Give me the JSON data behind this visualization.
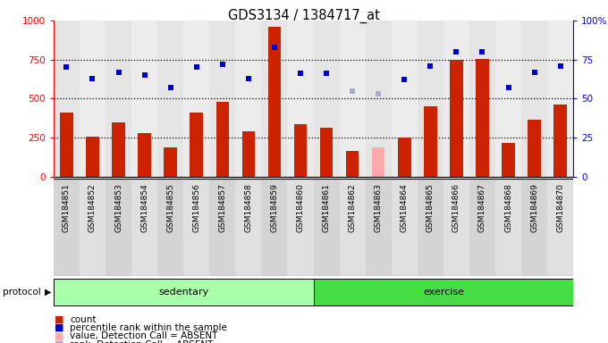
{
  "title": "GDS3134 / 1384717_at",
  "samples": [
    "GSM184851",
    "GSM184852",
    "GSM184853",
    "GSM184854",
    "GSM184855",
    "GSM184856",
    "GSM184857",
    "GSM184858",
    "GSM184859",
    "GSM184860",
    "GSM184861",
    "GSM184862",
    "GSM184863",
    "GSM184864",
    "GSM184865",
    "GSM184866",
    "GSM184867",
    "GSM184868",
    "GSM184869",
    "GSM184870"
  ],
  "bar_values": [
    410,
    255,
    350,
    278,
    185,
    410,
    480,
    293,
    960,
    338,
    315,
    165,
    185,
    253,
    450,
    748,
    752,
    215,
    365,
    460
  ],
  "bar_color_normal": "#cc2200",
  "bar_color_absent": "#ffaaaa",
  "absent_bar_indices": [
    12
  ],
  "rank_values": [
    70,
    63,
    67,
    65,
    57,
    70,
    72,
    63,
    83,
    66,
    66,
    55,
    53,
    62,
    71,
    80,
    80,
    57,
    67,
    71
  ],
  "rank_color_normal": "#0000cc",
  "rank_color_absent": "#aaaacc",
  "absent_rank_indices": [
    11,
    12
  ],
  "sedentary_color": "#aaffaa",
  "exercise_color": "#44dd44",
  "sedentary_range": [
    0,
    9
  ],
  "exercise_range": [
    10,
    19
  ],
  "ylim_left": [
    0,
    1000
  ],
  "ylim_right": [
    0,
    100
  ],
  "yticks_left": [
    0,
    250,
    500,
    750,
    1000
  ],
  "yticks_right": [
    0,
    25,
    50,
    75,
    100
  ],
  "ytick_labels_right": [
    "0",
    "25",
    "50",
    "75",
    "100%"
  ],
  "dotted_lines": [
    250,
    500,
    750
  ],
  "legend_items": [
    {
      "color": "#cc2200",
      "label": "count"
    },
    {
      "color": "#0000cc",
      "label": "percentile rank within the sample"
    },
    {
      "color": "#ffaaaa",
      "label": "value, Detection Call = ABSENT"
    },
    {
      "color": "#aaaacc",
      "label": "rank, Detection Call = ABSENT"
    }
  ]
}
